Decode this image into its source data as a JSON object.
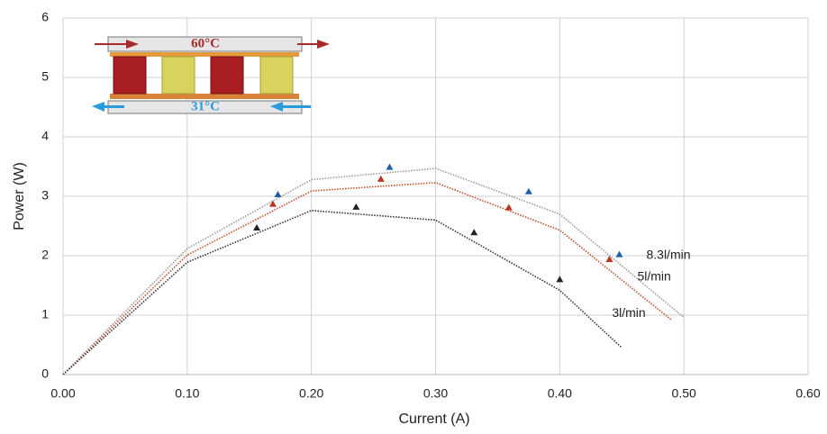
{
  "chart_data": {
    "type": "scatter",
    "x_label": "Current (A)",
    "y_label": "Power (W)",
    "xlim": [
      0,
      0.6
    ],
    "xticks": [
      {
        "value": 0,
        "label": "0.00"
      },
      {
        "value": 0.1,
        "label": "0.10"
      },
      {
        "value": 0.2,
        "label": "0.20"
      },
      {
        "value": 0.3,
        "label": "0.30"
      },
      {
        "value": 0.4,
        "label": "0.40"
      },
      {
        "value": 0.5,
        "label": "0.50"
      },
      {
        "value": 0.6,
        "label": "0.60"
      }
    ],
    "ylim": [
      0,
      6
    ],
    "yticks": [
      0,
      1,
      2,
      3,
      4,
      5,
      6
    ],
    "grid": true,
    "annotations": [
      "60°C",
      "31°C"
    ],
    "series": [
      {
        "name": "8.3l/min",
        "color": "#1f5fa8",
        "x": [
          0.173,
          0.263,
          0.375,
          0.448
        ],
        "values": [
          3.03,
          3.49,
          3.08,
          2.02
        ],
        "fit": {
          "color": "#9a9a9a",
          "x": [
            0,
            0.1,
            0.2,
            0.3,
            0.4,
            0.5
          ],
          "values": [
            0,
            2.12,
            3.28,
            3.47,
            2.7,
            0.96
          ]
        }
      },
      {
        "name": "5l/min",
        "color": "#b8361e",
        "x": [
          0.169,
          0.256,
          0.359,
          0.44
        ],
        "values": [
          2.87,
          3.29,
          2.81,
          1.94
        ],
        "fit": {
          "color": "#c0502a",
          "x": [
            0,
            0.1,
            0.2,
            0.3,
            0.4,
            0.49
          ],
          "values": [
            0,
            2.01,
            3.09,
            3.23,
            2.43,
            0.92
          ]
        }
      },
      {
        "name": "3l/min",
        "color": "#222222",
        "x": [
          0.156,
          0.236,
          0.331,
          0.4
        ],
        "values": [
          2.47,
          2.82,
          2.39,
          1.6
        ],
        "fit": {
          "color": "#333333",
          "x": [
            0,
            0.1,
            0.2,
            0.3,
            0.4,
            0.45
          ],
          "values": [
            0,
            1.89,
            2.76,
            2.6,
            1.42,
            0.45
          ]
        }
      }
    ]
  }
}
